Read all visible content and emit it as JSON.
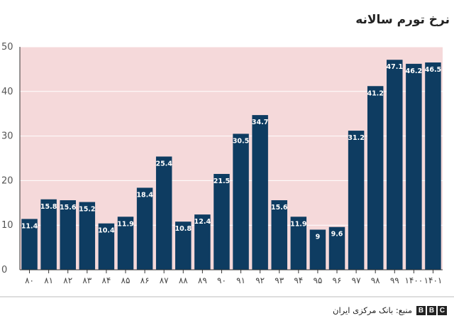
{
  "chart_data": {
    "type": "bar",
    "title": "نرخ تورم سالانه",
    "categories": [
      "۸۰",
      "۸۱",
      "۸۲",
      "۸۳",
      "۸۴",
      "۸۵",
      "۸۶",
      "۸۷",
      "۸۸",
      "۸۹",
      "۹۰",
      "۹۱",
      "۹۲",
      "۹۳",
      "۹۴",
      "۹۵",
      "۹۶",
      "۹۷",
      "۹۸",
      "۹۹",
      "۱۴۰۰",
      "۱۴۰۱"
    ],
    "values": [
      11.4,
      15.8,
      15.6,
      15.2,
      10.4,
      11.9,
      18.4,
      25.4,
      10.8,
      12.4,
      21.5,
      30.5,
      34.7,
      15.6,
      11.9,
      9,
      9.6,
      31.2,
      41.2,
      47.1,
      46.2,
      46.5
    ],
    "value_labels": [
      "11.4",
      "15.8",
      "15.6",
      "15.2",
      "10.4",
      "11.9",
      "18.4",
      "25.4",
      "10.8",
      "12.4",
      "21.5",
      "30.5",
      "34.7",
      "15.6",
      "11.9",
      "9",
      "9.6",
      "31.2",
      "41.2",
      "47.1",
      "46.2",
      "46.5"
    ],
    "yticks": [
      "0",
      "10",
      "20",
      "30",
      "40",
      "50"
    ],
    "ylim": [
      0,
      50
    ],
    "xlabel": "",
    "ylabel": "",
    "grid": true,
    "colors": {
      "bar": "#0e3c61",
      "plot_background": "#f5d9da",
      "gridline": "#ffffff"
    }
  },
  "footer": {
    "source": "منبع: بانک مرکزی ایران",
    "logo_letters": [
      "B",
      "B",
      "C"
    ]
  }
}
